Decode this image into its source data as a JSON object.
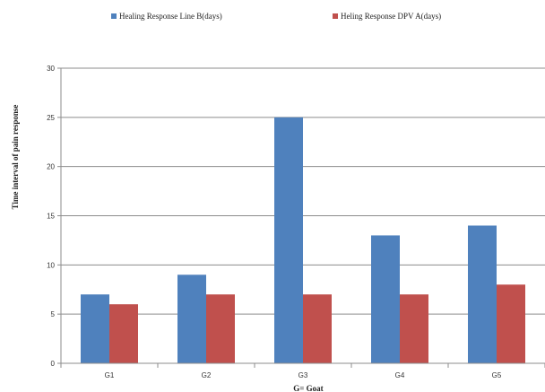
{
  "chart_data": {
    "type": "bar",
    "categories": [
      "G1",
      "G2",
      "G3",
      "G4",
      "G5"
    ],
    "series": [
      {
        "name": "Healing Response Line B(days)",
        "values": [
          7,
          9,
          25,
          13,
          14
        ],
        "color": "#4f81bd"
      },
      {
        "name": "Heling Response DPV A(days)",
        "values": [
          6,
          7,
          7,
          7,
          8
        ],
        "color": "#c0504d"
      }
    ],
    "xlabel": "G= Goat",
    "ylabel": "Time interval of pain response",
    "ylim": [
      0,
      30
    ],
    "yticks": [
      0,
      5,
      10,
      15,
      20,
      25,
      30
    ],
    "grid": true,
    "legend_position": "top"
  }
}
